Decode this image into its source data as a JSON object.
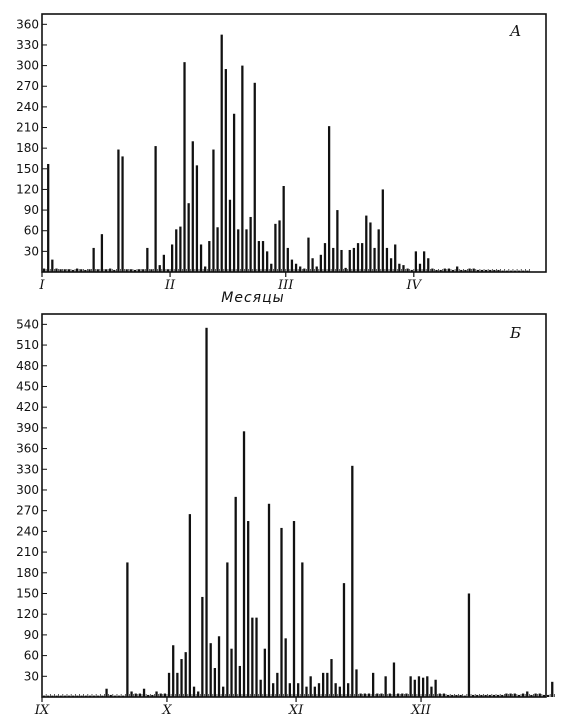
{
  "chart_data": [
    {
      "type": "bar",
      "panel_label": "А",
      "xlabel": "Месяцы",
      "ylabel": "",
      "ylim": [
        0,
        375
      ],
      "yticks": [
        30,
        60,
        90,
        120,
        150,
        180,
        210,
        240,
        270,
        300,
        330,
        360
      ],
      "month_ticks": [
        {
          "label": "I",
          "pos": 0
        },
        {
          "label": "II",
          "pos": 31
        },
        {
          "label": "III",
          "pos": 59
        },
        {
          "label": "IV",
          "pos": 90
        }
      ],
      "x_range": [
        0,
        122
      ],
      "values": [
        5,
        157,
        18,
        5,
        4,
        4,
        4,
        3,
        5,
        4,
        3,
        4,
        35,
        4,
        55,
        4,
        5,
        3,
        178,
        168,
        4,
        4,
        3,
        4,
        4,
        35,
        4,
        183,
        10,
        25,
        4,
        40,
        62,
        66,
        305,
        100,
        190,
        155,
        40,
        8,
        45,
        178,
        65,
        345,
        295,
        105,
        230,
        62,
        300,
        62,
        80,
        275,
        45,
        45,
        30,
        12,
        70,
        75,
        125,
        35,
        18,
        12,
        8,
        5,
        50,
        20,
        8,
        25,
        42,
        212,
        35,
        90,
        32,
        6,
        32,
        35,
        42,
        42,
        82,
        72,
        35,
        62,
        120,
        35,
        20,
        40,
        12,
        10,
        5,
        3,
        30,
        12,
        30,
        20,
        5,
        3,
        3,
        5,
        5,
        3,
        8,
        3,
        3,
        5,
        5,
        3,
        3,
        3,
        3,
        3,
        3,
        2,
        2,
        2,
        2,
        2,
        2,
        2
      ]
    },
    {
      "type": "bar",
      "panel_label": "Б",
      "xlabel": "",
      "ylabel": "",
      "ylim": [
        0,
        555
      ],
      "yticks": [
        30,
        60,
        90,
        120,
        150,
        180,
        210,
        240,
        270,
        300,
        330,
        360,
        390,
        420,
        450,
        480,
        510,
        540
      ],
      "month_ticks": [
        {
          "label": "IX",
          "pos": 0
        },
        {
          "label": "X",
          "pos": 30
        },
        {
          "label": "XI",
          "pos": 61
        },
        {
          "label": "XII",
          "pos": 91
        }
      ],
      "x_range": [
        0,
        121
      ],
      "values": [
        2,
        2,
        2,
        2,
        2,
        2,
        2,
        2,
        2,
        2,
        2,
        2,
        2,
        2,
        2,
        12,
        3,
        2,
        2,
        2,
        195,
        8,
        5,
        5,
        12,
        3,
        3,
        8,
        5,
        5,
        35,
        75,
        35,
        55,
        65,
        265,
        15,
        8,
        145,
        535,
        78,
        42,
        88,
        15,
        195,
        70,
        290,
        45,
        385,
        255,
        115,
        115,
        25,
        70,
        280,
        20,
        35,
        245,
        85,
        20,
        255,
        20,
        195,
        15,
        30,
        15,
        20,
        35,
        35,
        55,
        20,
        15,
        165,
        20,
        335,
        40,
        5,
        5,
        5,
        35,
        5,
        5,
        30,
        5,
        50,
        5,
        5,
        5,
        30,
        25,
        30,
        28,
        30,
        15,
        25,
        5,
        5,
        3,
        3,
        3,
        3,
        2,
        150,
        3,
        3,
        3,
        3,
        3,
        3,
        3,
        3,
        5,
        5,
        5,
        3,
        5,
        8,
        3,
        5,
        5,
        3,
        3,
        22
      ]
    }
  ]
}
